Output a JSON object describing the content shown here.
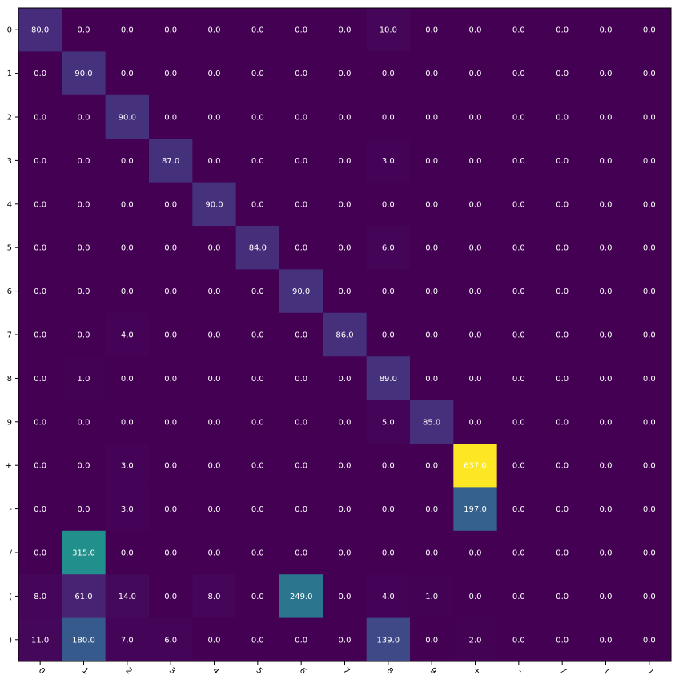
{
  "chart_data": {
    "type": "heatmap",
    "title": "",
    "xlabel": "",
    "ylabel": "",
    "x_categories": [
      "0",
      "1",
      "2",
      "3",
      "4",
      "5",
      "6",
      "7",
      "8",
      "9",
      "+",
      "-",
      "/",
      "(",
      ")"
    ],
    "y_categories": [
      "0",
      "1",
      "2",
      "3",
      "4",
      "5",
      "6",
      "7",
      "8",
      "9",
      "+",
      "-",
      "/",
      "(",
      ")"
    ],
    "values": [
      [
        80,
        0,
        0,
        0,
        0,
        0,
        0,
        0,
        10,
        0,
        0,
        0,
        0,
        0,
        0
      ],
      [
        0,
        90,
        0,
        0,
        0,
        0,
        0,
        0,
        0,
        0,
        0,
        0,
        0,
        0,
        0
      ],
      [
        0,
        0,
        90,
        0,
        0,
        0,
        0,
        0,
        0,
        0,
        0,
        0,
        0,
        0,
        0
      ],
      [
        0,
        0,
        0,
        87,
        0,
        0,
        0,
        0,
        3,
        0,
        0,
        0,
        0,
        0,
        0
      ],
      [
        0,
        0,
        0,
        0,
        90,
        0,
        0,
        0,
        0,
        0,
        0,
        0,
        0,
        0,
        0
      ],
      [
        0,
        0,
        0,
        0,
        0,
        84,
        0,
        0,
        6,
        0,
        0,
        0,
        0,
        0,
        0
      ],
      [
        0,
        0,
        0,
        0,
        0,
        0,
        90,
        0,
        0,
        0,
        0,
        0,
        0,
        0,
        0
      ],
      [
        0,
        0,
        4,
        0,
        0,
        0,
        0,
        86,
        0,
        0,
        0,
        0,
        0,
        0,
        0
      ],
      [
        0,
        1,
        0,
        0,
        0,
        0,
        0,
        0,
        89,
        0,
        0,
        0,
        0,
        0,
        0
      ],
      [
        0,
        0,
        0,
        0,
        0,
        0,
        0,
        0,
        5,
        85,
        0,
        0,
        0,
        0,
        0
      ],
      [
        0,
        0,
        3,
        0,
        0,
        0,
        0,
        0,
        0,
        0,
        637,
        0,
        0,
        0,
        0
      ],
      [
        0,
        0,
        3,
        0,
        0,
        0,
        0,
        0,
        0,
        0,
        197,
        0,
        0,
        0,
        0
      ],
      [
        0,
        315,
        0,
        0,
        0,
        0,
        0,
        0,
        0,
        0,
        0,
        0,
        0,
        0,
        0
      ],
      [
        8,
        61,
        14,
        0,
        8,
        0,
        249,
        0,
        4,
        1,
        0,
        0,
        0,
        0,
        0
      ],
      [
        11,
        180,
        7,
        6,
        0,
        0,
        0,
        0,
        139,
        0,
        2,
        0,
        0,
        0,
        0
      ]
    ],
    "value_format": "one_decimal",
    "colormap": "viridis",
    "vmin": 0,
    "vmax": 637,
    "grid": false,
    "x_tick_rotation_deg": 45
  }
}
